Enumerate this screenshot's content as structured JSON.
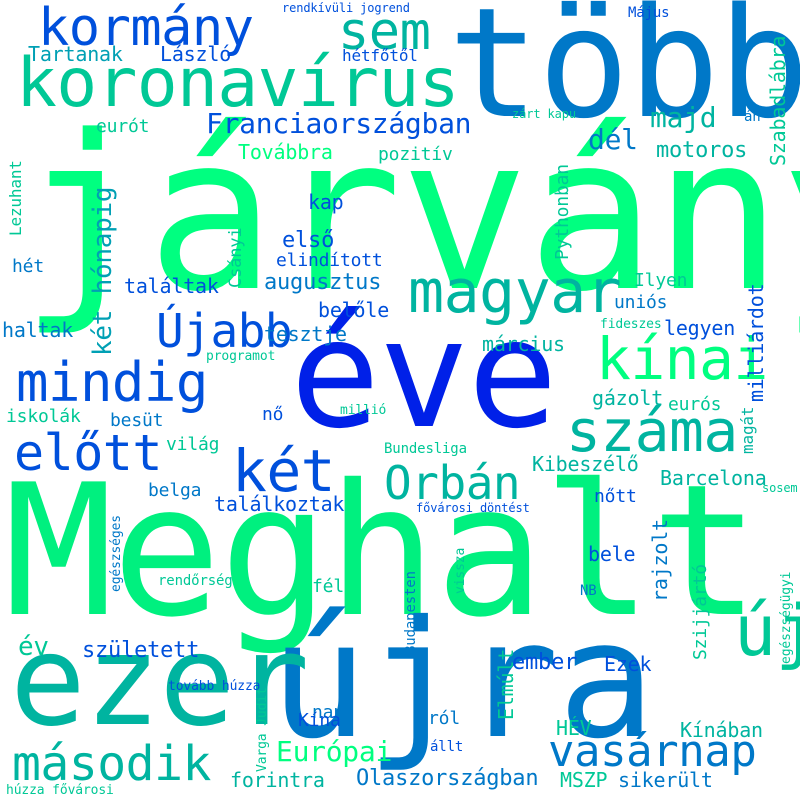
{
  "colors": {
    "green": "#00f07f",
    "mint": "#00ff80",
    "teal": "#00b4a0",
    "cyan": "#00c896",
    "sky": "#00a0b4",
    "blue": "#0078c8",
    "royal": "#0050dc",
    "deep": "#0020e8",
    "lime": "#00ff88"
  },
  "words": [
    {
      "text": "Meghalt"
    },
    {
      "text": "járvány"
    },
    {
      "text": "éve"
    },
    {
      "text": "több"
    },
    {
      "text": "újra"
    },
    {
      "text": "ezer"
    },
    {
      "text": "koronavírus"
    },
    {
      "text": "kormány"
    },
    {
      "text": "sem"
    },
    {
      "text": "magyar"
    },
    {
      "text": "mindig"
    },
    {
      "text": "kínai"
    },
    {
      "text": "száma"
    },
    {
      "text": "két"
    },
    {
      "text": "előtt"
    },
    {
      "text": "Orbán"
    },
    {
      "text": "Újabb"
    },
    {
      "text": "vasárnap"
    },
    {
      "text": "második"
    },
    {
      "text": "új"
    },
    {
      "text": "Franciaországban"
    },
    {
      "text": "majd"
    },
    {
      "text": "dél"
    },
    {
      "text": "Továbbra"
    },
    {
      "text": "pozitív"
    },
    {
      "text": "motoros"
    },
    {
      "text": "eurót"
    },
    {
      "text": "két hónapig"
    },
    {
      "text": "első"
    },
    {
      "text": "kap"
    },
    {
      "text": "elindított"
    },
    {
      "text": "augusztus"
    },
    {
      "text": "találtak"
    },
    {
      "text": "belőle"
    },
    {
      "text": "tesztje"
    },
    {
      "text": "március"
    },
    {
      "text": "haltak"
    },
    {
      "text": "hét"
    },
    {
      "text": "Lezuhant"
    },
    {
      "text": "Csányi"
    },
    {
      "text": "Pythonban"
    },
    {
      "text": "Ilyen"
    },
    {
      "text": "uniós"
    },
    {
      "text": "legyen"
    },
    {
      "text": "fideszes"
    },
    {
      "text": "programot"
    },
    {
      "text": "milliárdot"
    },
    {
      "text": "Szabadlábra"
    },
    {
      "text": "Tartanak"
    },
    {
      "text": "László"
    },
    {
      "text": "hétfőtől"
    },
    {
      "text": "Május"
    },
    {
      "text": "rendkívüli jogrend"
    },
    {
      "text": "zárt kapu"
    },
    {
      "text": "án"
    },
    {
      "text": "iskolák"
    },
    {
      "text": "besüt"
    },
    {
      "text": "nő"
    },
    {
      "text": "millió"
    },
    {
      "text": "gázolt"
    },
    {
      "text": "eurós"
    },
    {
      "text": "magát"
    },
    {
      "text": "világ"
    },
    {
      "text": "Bundesliga"
    },
    {
      "text": "Kibeszélő"
    },
    {
      "text": "Barcelona"
    },
    {
      "text": "belga"
    },
    {
      "text": "találkoztak"
    },
    {
      "text": "nőtt"
    },
    {
      "text": "fővárosi döntést"
    },
    {
      "text": "sosem"
    },
    {
      "text": "egészséges"
    },
    {
      "text": "rendőrség"
    },
    {
      "text": "fél"
    },
    {
      "text": "Budapesten"
    },
    {
      "text": "vissza"
    },
    {
      "text": "bele"
    },
    {
      "text": "rajzolt"
    },
    {
      "text": "Szijjártó"
    },
    {
      "text": "NB"
    },
    {
      "text": "egészségügyi"
    },
    {
      "text": "év"
    },
    {
      "text": "született"
    },
    {
      "text": "ember"
    },
    {
      "text": "Ezek"
    },
    {
      "text": "tovább húzza"
    },
    {
      "text": "Varga Judit"
    },
    {
      "text": "Elmúlt"
    },
    {
      "text": "nap"
    },
    {
      "text": "ról"
    },
    {
      "text": "Kína"
    },
    {
      "text": "állt"
    },
    {
      "text": "HÉV"
    },
    {
      "text": "Kínában"
    },
    {
      "text": "Európai"
    },
    {
      "text": "forintra"
    },
    {
      "text": "Olaszországban"
    },
    {
      "text": "MSZP"
    },
    {
      "text": "sikerült"
    },
    {
      "text": "húzza fővárosi"
    }
  ]
}
